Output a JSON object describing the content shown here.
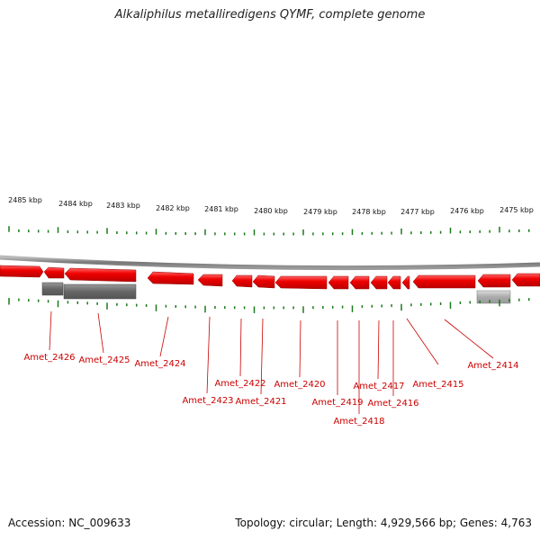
{
  "title": "Alkaliphilus metalliredigens QYMF, complete genome",
  "accession": "Accession: NC_009633",
  "summary": "Topology: circular; Length: 4,929,566 bp; Genes: 4,763",
  "kbp_labels": [
    {
      "label": "2485 kbp",
      "kbp": 2485
    },
    {
      "label": "2484 kbp",
      "kbp": 2484
    },
    {
      "label": "2483 kbp",
      "kbp": 2483
    },
    {
      "label": "2482 kbp",
      "kbp": 2482
    },
    {
      "label": "2481 kbp",
      "kbp": 2481
    },
    {
      "label": "2480 kbp",
      "kbp": 2480
    },
    {
      "label": "2479 kbp",
      "kbp": 2479
    },
    {
      "label": "2478 kbp",
      "kbp": 2478
    },
    {
      "label": "2477 kbp",
      "kbp": 2477
    },
    {
      "label": "2476 kbp",
      "kbp": 2476
    },
    {
      "label": "2475 kbp",
      "kbp": 2475
    }
  ],
  "genes": [
    {
      "name": "Amet_2426"
    },
    {
      "name": "Amet_2425"
    },
    {
      "name": "Amet_2424"
    },
    {
      "name": "Amet_2423"
    },
    {
      "name": "Amet_2422"
    },
    {
      "name": "Amet_2421"
    },
    {
      "name": "Amet_2420"
    },
    {
      "name": "Amet_2419"
    },
    {
      "name": "Amet_2418"
    },
    {
      "name": "Amet_2417"
    },
    {
      "name": "Amet_2416"
    },
    {
      "name": "Amet_2415"
    },
    {
      "name": "Amet_2414"
    }
  ],
  "colors": {
    "gene_red": "#ee0000",
    "label_red": "#cc0000",
    "tick_green": "#1a7a1a",
    "backbone_gray": "#888888",
    "rna_dark": "#666666",
    "rna_light": "#aaaaaa"
  }
}
